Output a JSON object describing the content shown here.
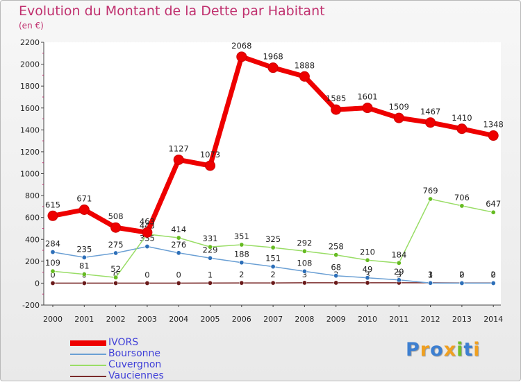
{
  "chart_data": {
    "type": "line",
    "title": "Evolution du Montant de la Dette par Habitant",
    "subtitle": "(en €)",
    "x": [
      2000,
      2001,
      2002,
      2003,
      2004,
      2005,
      2006,
      2007,
      2008,
      2009,
      2010,
      2011,
      2012,
      2013,
      2014
    ],
    "x_tick_labels": [
      "2000",
      "2001",
      "2002",
      "2003",
      "2004",
      "2005",
      "2006",
      "2007",
      "2008",
      "2009",
      "2010",
      "2011",
      "2012",
      "2013",
      "2014"
    ],
    "ylim": [
      -200,
      2200
    ],
    "y_ticks": [
      -200,
      0,
      200,
      400,
      600,
      800,
      1000,
      1200,
      1400,
      1600,
      1800,
      2000,
      2200
    ],
    "y_tick_labels": [
      "-200",
      "0",
      "200",
      "400",
      "600",
      "800",
      "1000",
      "1200",
      "1400",
      "1600",
      "1800",
      "2000",
      "2200"
    ],
    "grid": false,
    "legend_position": "bottom-left",
    "series": [
      {
        "name": "IVORS",
        "color": "#ee0000",
        "values": [
          615,
          671,
          508,
          463,
          1127,
          1073,
          2068,
          1968,
          1888,
          1585,
          1601,
          1509,
          1467,
          1410,
          1348
        ],
        "labels": [
          "615",
          "671",
          "508",
          "463",
          "1127",
          "1073",
          "2068",
          "1968",
          "1888",
          "1585",
          "1601",
          "1509",
          "1467",
          "1410",
          "1348"
        ]
      },
      {
        "name": "Boursonne",
        "color": "#6a9fd4",
        "values": [
          284,
          235,
          275,
          335,
          276,
          229,
          188,
          151,
          108,
          68,
          49,
          29,
          1,
          0,
          0
        ],
        "labels": [
          "284",
          "235",
          "275",
          "335",
          "276",
          "229",
          "188",
          "151",
          "108",
          "68",
          "49",
          "29",
          "1",
          "0",
          "0"
        ]
      },
      {
        "name": "Cuvergnon",
        "color": "#99dd66",
        "values": [
          109,
          81,
          52,
          448,
          414,
          331,
          351,
          325,
          292,
          258,
          210,
          184,
          769,
          706,
          647
        ],
        "labels": [
          "109",
          "81",
          "52",
          "448",
          "414",
          "331",
          "351",
          "325",
          "292",
          "258",
          "210",
          "184",
          "769",
          "706",
          "647"
        ]
      },
      {
        "name": "Vauciennes",
        "color": "#7a2a2a",
        "values": [
          0,
          0,
          0,
          0,
          0,
          1,
          2,
          2,
          3,
          3,
          3,
          3,
          3,
          2,
          2
        ],
        "labels": [
          "0",
          "0",
          "0",
          "0",
          "0",
          "1",
          "2",
          "2",
          "3",
          "3",
          "3",
          "3",
          "3",
          "2",
          "2"
        ]
      }
    ]
  },
  "brand": {
    "name": "Proxiti",
    "letters": [
      "P",
      "r",
      "o",
      "x",
      "i",
      "t",
      "i"
    ],
    "letter_colors": [
      "#3d7fd1",
      "#f0a020",
      "#3d7fd1",
      "#f0a020",
      "#6fbf2a",
      "#3d7fd1",
      "#f0a020"
    ]
  }
}
